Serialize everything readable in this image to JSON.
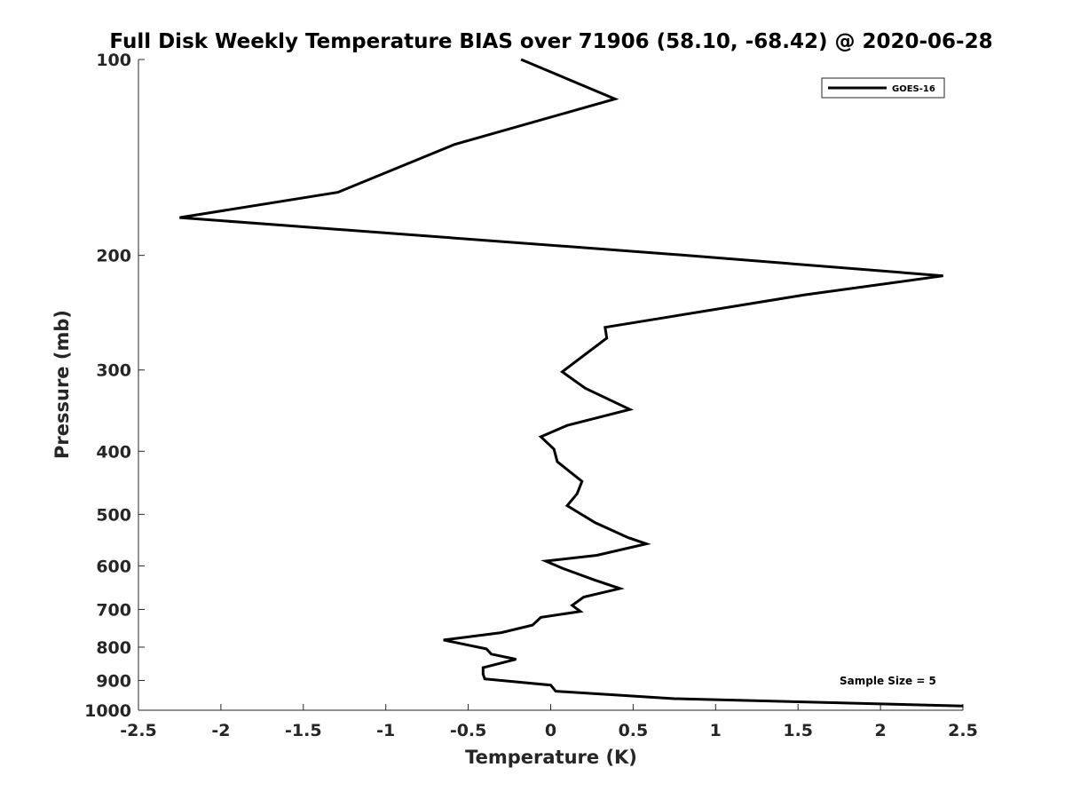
{
  "chart_data": {
    "type": "line",
    "title": "Full Disk Weekly Temperature BIAS over 71906 (58.10, -68.42) @ 2020-06-28",
    "xlabel": "Temperature (K)",
    "ylabel": "Pressure (mb)",
    "xlim": [
      -2.5,
      2.5
    ],
    "ylim": [
      100,
      1000
    ],
    "y_scale": "log",
    "y_reversed": true,
    "x_ticks": [
      -2.5,
      -2,
      -1.5,
      -1,
      -0.5,
      0,
      0.5,
      1,
      1.5,
      2,
      2.5
    ],
    "x_tick_labels": [
      "-2.5",
      "-2",
      "-1.5",
      "-1",
      "-0.5",
      "0",
      "0.5",
      "1",
      "1.5",
      "2",
      "2.5"
    ],
    "y_ticks": [
      100,
      200,
      300,
      400,
      500,
      600,
      700,
      800,
      900,
      1000
    ],
    "y_tick_labels": [
      "100",
      "200",
      "300",
      "400",
      "500",
      "600",
      "700",
      "800",
      "900",
      "1000"
    ],
    "grid": false,
    "legend": {
      "position": "top-right",
      "entries": [
        "GOES-16"
      ]
    },
    "annotation": "Sample Size = 5",
    "line_color": "#000000",
    "series": [
      {
        "name": "GOES-16",
        "x": [
          -0.18,
          0.39,
          -0.58,
          -1.29,
          -2.25,
          0.83,
          2.38,
          1.54,
          0.33,
          0.34,
          0.07,
          0.21,
          0.48,
          0.1,
          -0.06,
          0.02,
          0.04,
          0.19,
          0.16,
          0.1,
          0.27,
          0.47,
          0.58,
          0.28,
          -0.03,
          0.07,
          0.26,
          0.42,
          0.2,
          0.13,
          0.18,
          -0.06,
          -0.11,
          -0.3,
          -0.65,
          -0.39,
          -0.36,
          -0.21,
          -0.41,
          -0.41,
          -0.4,
          0.0,
          0.03,
          0.75,
          2.5
        ],
        "y": [
          100,
          115,
          135,
          160,
          175,
          200,
          215,
          230,
          258,
          268,
          302,
          320,
          345,
          365,
          380,
          397,
          415,
          445,
          465,
          485,
          515,
          543,
          555,
          578,
          590,
          605,
          630,
          650,
          670,
          690,
          705,
          720,
          740,
          760,
          780,
          805,
          820,
          835,
          860,
          880,
          895,
          915,
          935,
          960,
          985
        ]
      }
    ]
  }
}
